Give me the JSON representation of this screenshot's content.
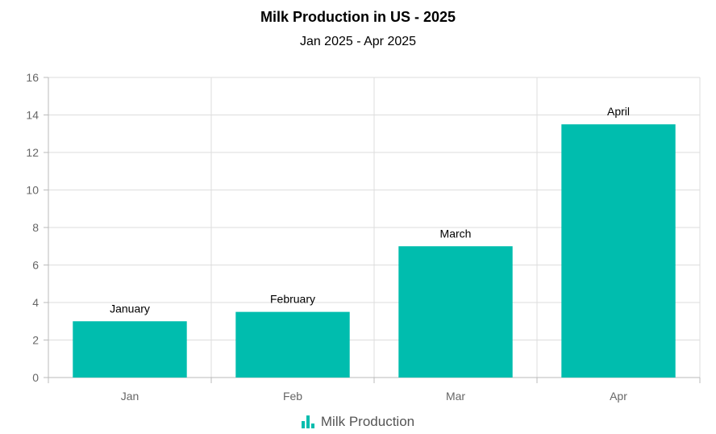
{
  "chart_data": {
    "type": "bar",
    "title": "Milk Production in US - 2025",
    "subtitle": "Jan 2025 - Apr 2025",
    "categories": [
      "Jan",
      "Feb",
      "Mar",
      "Apr"
    ],
    "series": [
      {
        "name": "Milk Production",
        "values": [
          3,
          3.5,
          7,
          13.5
        ],
        "data_labels": [
          "January",
          "February",
          "March",
          "April"
        ]
      }
    ],
    "ylim": [
      0,
      16
    ],
    "yticks": [
      0,
      2,
      4,
      6,
      8,
      10,
      12,
      14,
      16
    ],
    "grid": true,
    "legend_position": "bottom-center",
    "colors": {
      "bar": "#00bdae",
      "grid": "#dddddd",
      "axis": "#bbbbbb"
    }
  }
}
